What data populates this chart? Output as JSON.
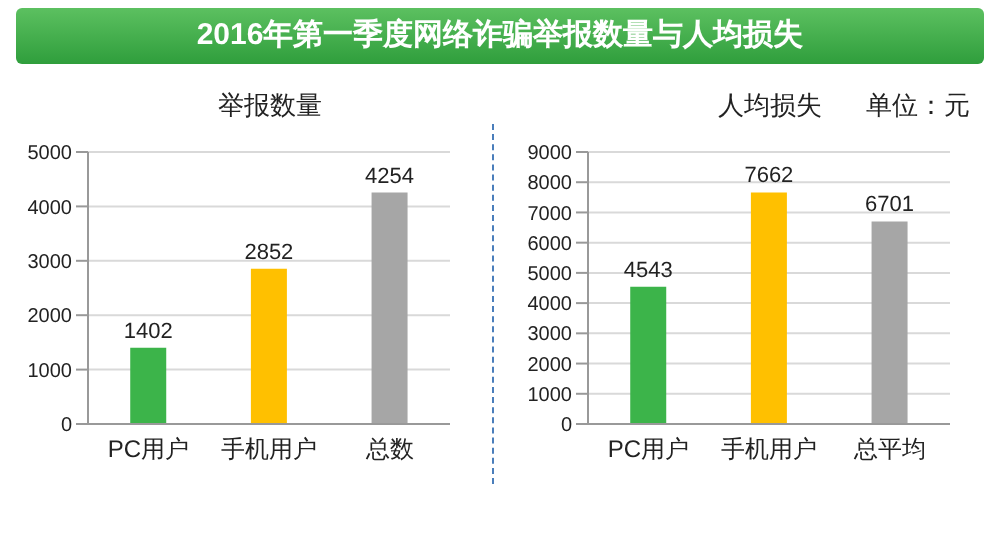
{
  "chart_data": [
    {
      "type": "bar",
      "title": "2016年第一季度网络诈骗举报数量与人均损失",
      "subtitle": "举报数量",
      "categories": [
        "PC用户",
        "手机用户",
        "总数"
      ],
      "values": [
        1402,
        2852,
        4254
      ],
      "colors": [
        "#3cb44a",
        "#ffc000",
        "#a6a6a6"
      ],
      "ylim": [
        0,
        5000
      ],
      "yticks": [
        0,
        1000,
        2000,
        3000,
        4000,
        5000
      ],
      "grid": "y",
      "data_labels": true
    },
    {
      "type": "bar",
      "title": "人均损失",
      "annotations": [
        "单位：元"
      ],
      "categories": [
        "PC用户",
        "手机用户",
        "总平均"
      ],
      "values": [
        4543,
        7662,
        6701
      ],
      "colors": [
        "#3cb44a",
        "#ffc000",
        "#a6a6a6"
      ],
      "ylim": [
        0,
        9000
      ],
      "yticks": [
        0,
        1000,
        2000,
        3000,
        4000,
        5000,
        6000,
        7000,
        8000,
        9000
      ],
      "grid": "y",
      "data_labels": true
    }
  ]
}
